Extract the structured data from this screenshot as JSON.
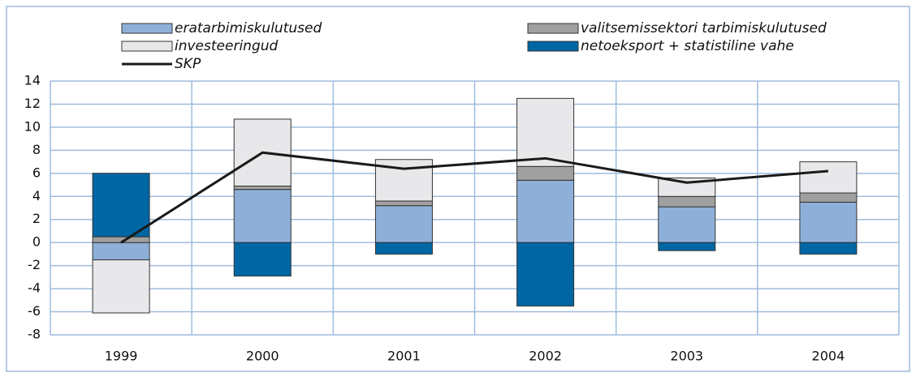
{
  "chart_data": {
    "type": "bar",
    "stacked": true,
    "categories": [
      "1999",
      "2000",
      "2001",
      "2002",
      "2003",
      "2004"
    ],
    "series": [
      {
        "name": "eratarbimiskulutused",
        "color": "#8eb0d8",
        "values": [
          -1.5,
          4.6,
          3.2,
          5.4,
          3.1,
          3.5
        ]
      },
      {
        "name": "valitsemissektori tarbimiskulutused",
        "color": "#a0a0a0",
        "values": [
          0.5,
          0.3,
          0.4,
          1.2,
          0.9,
          0.8
        ]
      },
      {
        "name": "investeeringud",
        "color": "#e8e8ea",
        "values": [
          -4.6,
          5.8,
          3.6,
          5.9,
          1.6,
          2.7
        ]
      },
      {
        "name": "netoeksport + statistiline vahe",
        "color": "#0066a4",
        "values": [
          5.5,
          -2.9,
          -1.0,
          -5.5,
          -0.7,
          -1.0
        ]
      },
      {
        "name": "SKP",
        "color": "#1a1a1a",
        "type": "line",
        "values": [
          0.0,
          7.8,
          6.4,
          7.3,
          5.2,
          6.2
        ]
      }
    ],
    "ylim": [
      -8,
      14
    ],
    "yticks": [
      -8,
      -6,
      -4,
      -2,
      0,
      2,
      4,
      6,
      8,
      10,
      12,
      14
    ],
    "grid": true
  }
}
